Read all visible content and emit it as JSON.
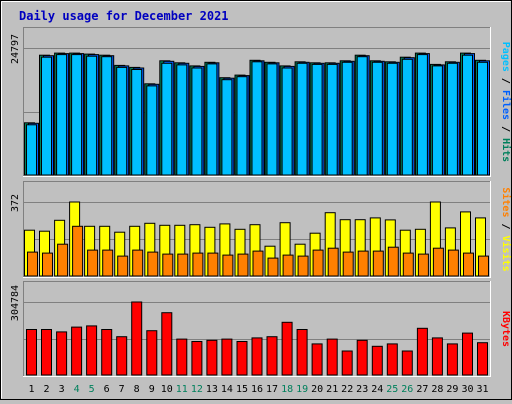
{
  "chart_data": {
    "type": "bar",
    "title": "Daily usage for December 2021",
    "categories": [
      "1",
      "2",
      "3",
      "4",
      "5",
      "6",
      "7",
      "8",
      "9",
      "10",
      "11",
      "12",
      "13",
      "14",
      "15",
      "16",
      "17",
      "18",
      "19",
      "20",
      "21",
      "22",
      "23",
      "24",
      "25",
      "26",
      "27",
      "28",
      "29",
      "30",
      "31"
    ],
    "weekend_days": [
      "4",
      "5",
      "11",
      "12",
      "18",
      "19",
      "25",
      "26"
    ],
    "panels": [
      {
        "id": "pages-files-hits",
        "max_label": "24797",
        "ylim": [
          0,
          24797
        ],
        "axis_label_parts": [
          {
            "text": "Pages",
            "color": "#00c0ff"
          },
          {
            "text": " / ",
            "color": "#000000"
          },
          {
            "text": "Files",
            "color": "#0060ff"
          },
          {
            "text": " / ",
            "color": "#000000"
          },
          {
            "text": "Hits",
            "color": "#00805c"
          }
        ],
        "series": [
          {
            "name": "Hits",
            "color": "#00805c",
            "values": [
              10200,
              23400,
              23800,
              23800,
              23600,
              23400,
              21400,
              21000,
              17800,
              22300,
              21900,
              21300,
              22000,
              19000,
              19500,
              22400,
              22000,
              21300,
              22100,
              21900,
              21900,
              22300,
              23400,
              22300,
              22100,
              23000,
              23800,
              21600,
              22100,
              23800,
              22400
            ]
          },
          {
            "name": "Files",
            "color": "#0060ff",
            "values": [
              10100,
              23300,
              23700,
              23700,
              23500,
              23300,
              21300,
              20900,
              17700,
              22200,
              21800,
              21200,
              21900,
              18900,
              19400,
              22300,
              21900,
              21200,
              22000,
              21800,
              21800,
              22200,
              23300,
              22200,
              22000,
              22900,
              23700,
              21500,
              22000,
              23700,
              22300
            ]
          },
          {
            "name": "Pages",
            "color": "#00c0ff",
            "values": [
              9800,
              23000,
              23500,
              23500,
              23200,
              23100,
              21000,
              20600,
              17400,
              21800,
              21500,
              20900,
              21700,
              18600,
              19200,
              22100,
              21700,
              20900,
              21800,
              21600,
              21600,
              22000,
              23100,
              22000,
              21800,
              22600,
              23500,
              21300,
              21800,
              23400,
              22000
            ]
          }
        ]
      },
      {
        "id": "sites-visits",
        "max_label": "372",
        "ylim": [
          0,
          372
        ],
        "axis_label_parts": [
          {
            "text": "Sites",
            "color": "#ff8000"
          },
          {
            "text": " / ",
            "color": "#000000"
          },
          {
            "text": "Visits",
            "color": "#ffff00"
          }
        ],
        "series": [
          {
            "name": "Visits",
            "color": "#ffff00",
            "values": [
              230,
              225,
              280,
              372,
              250,
              250,
              220,
              250,
              265,
              255,
              255,
              258,
              245,
              262,
              235,
              258,
              150,
              268,
              160,
              215,
              318,
              283,
              283,
              292,
              282,
              230,
              235,
              372,
              242,
              322,
              292
            ]
          },
          {
            "name": "Sites",
            "color": "#ff8000",
            "values": [
              120,
              115,
              160,
              250,
              130,
              130,
              100,
              130,
              120,
              110,
              110,
              115,
              115,
              105,
              110,
              125,
              90,
              105,
              100,
              130,
              140,
              120,
              125,
              125,
              145,
              115,
              110,
              140,
              130,
              115,
              100
            ]
          }
        ]
      },
      {
        "id": "kbytes",
        "max_label": "304784",
        "ylim": [
          0,
          304784
        ],
        "axis_label_parts": [
          {
            "text": "KBytes",
            "color": "#ff0000"
          }
        ],
        "series": [
          {
            "name": "KBytes",
            "color": "#ff0000",
            "values": [
              190000,
              190000,
              180000,
              200000,
              205000,
              190000,
              160000,
              304784,
              185000,
              260000,
              150000,
              140000,
              145000,
              150000,
              140000,
              155000,
              160000,
              220000,
              190000,
              130000,
              150000,
              100000,
              145000,
              120000,
              130000,
              100000,
              195000,
              155000,
              130000,
              175000,
              135000
            ]
          }
        ]
      }
    ]
  }
}
